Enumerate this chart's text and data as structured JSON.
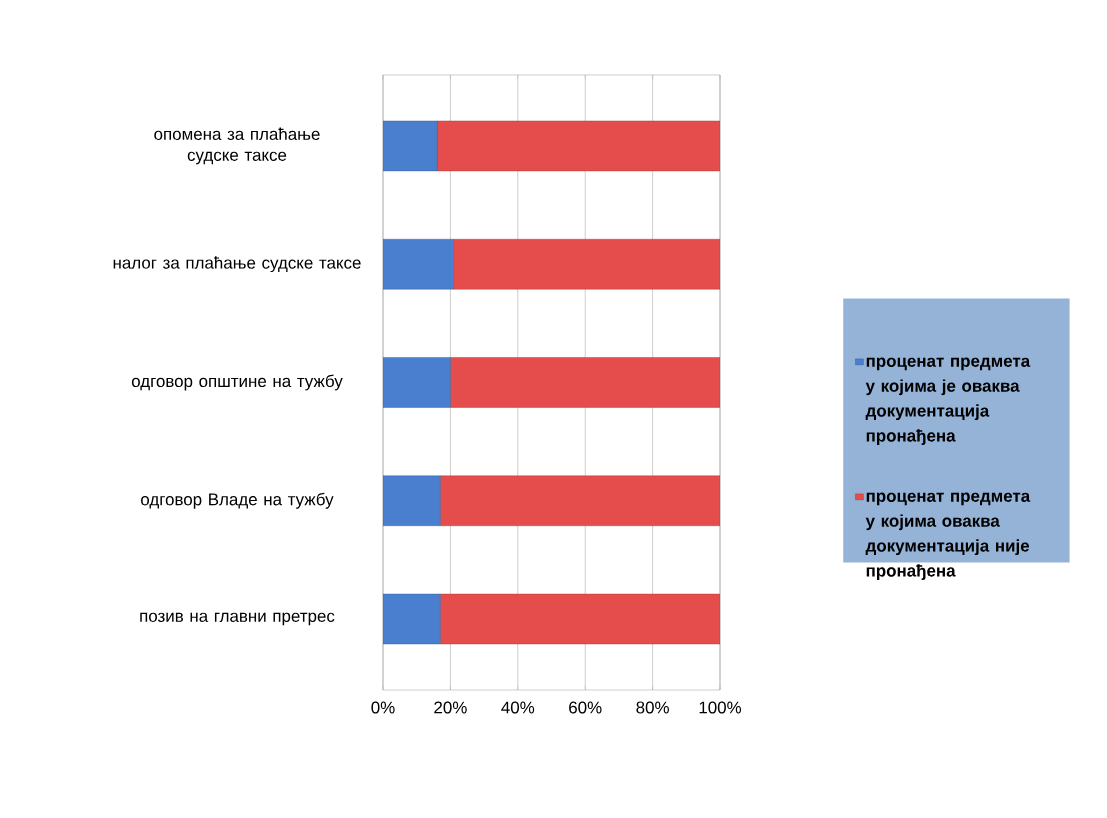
{
  "chart_data": {
    "type": "bar",
    "orientation": "horizontal",
    "stacked": true,
    "categories": [
      "опомена за плаћање судске таксе",
      "налог за плаћање судске таксе",
      "одговор општине на тужбу",
      "одговор Владе на тужбу",
      "позив на главни претрес"
    ],
    "series": [
      {
        "name": "проценат предмета у којима је оваква документација пронађена",
        "color": "#4a7ecf",
        "values": [
          16,
          21,
          20,
          17,
          17
        ]
      },
      {
        "name": "проценат предмета у којима оваква документација није пронађена",
        "color": "#e44d4b",
        "values": [
          84,
          79,
          80,
          83,
          83
        ]
      }
    ],
    "xlim": [
      0,
      100
    ],
    "xticks": [
      {
        "value": 0,
        "label": "0%"
      },
      {
        "value": 20,
        "label": "20%"
      },
      {
        "value": 40,
        "label": "40%"
      },
      {
        "value": 60,
        "label": "60%"
      },
      {
        "value": 80,
        "label": "80%"
      },
      {
        "value": 100,
        "label": "100%"
      }
    ],
    "grid": "x",
    "legend": "right"
  }
}
